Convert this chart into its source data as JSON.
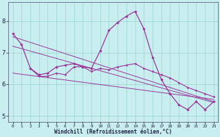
{
  "xlabel": "Windchill (Refroidissement éolien,°C)",
  "background_color": "#c8eef0",
  "grid_color": "#a0d8d0",
  "line_color": "#993399",
  "xlim": [
    -0.5,
    23.5
  ],
  "ylim": [
    4.8,
    8.6
  ],
  "x_ticks": [
    0,
    1,
    2,
    3,
    4,
    5,
    6,
    7,
    8,
    9,
    10,
    11,
    12,
    13,
    14,
    15,
    16,
    17,
    18,
    19,
    20,
    21,
    22,
    23
  ],
  "y_ticks": [
    5,
    6,
    7,
    8
  ],
  "series1_x": [
    0,
    1,
    2,
    3,
    4,
    5,
    6,
    7,
    8,
    9,
    10,
    11,
    12,
    13,
    14,
    15,
    16,
    17,
    18,
    19,
    20,
    21,
    22,
    23
  ],
  "series1_y": [
    7.6,
    7.25,
    6.5,
    6.3,
    6.35,
    6.55,
    6.6,
    6.65,
    6.55,
    6.5,
    7.05,
    7.7,
    7.95,
    8.15,
    8.3,
    7.75,
    6.85,
    6.15,
    5.7,
    5.35,
    5.2,
    5.45,
    5.2,
    5.45
  ],
  "series2_x": [
    2,
    3,
    4,
    5,
    6,
    7,
    8,
    9,
    10,
    11,
    12,
    13,
    14,
    15,
    16,
    17,
    18,
    19,
    20,
    21,
    22,
    23
  ],
  "series2_y": [
    6.5,
    6.25,
    6.25,
    6.35,
    6.3,
    6.55,
    6.55,
    6.4,
    6.5,
    6.45,
    6.55,
    6.6,
    6.65,
    6.5,
    6.4,
    6.3,
    6.2,
    6.05,
    5.9,
    5.8,
    5.7,
    5.6
  ],
  "trend1_x": [
    0,
    23
  ],
  "trend1_y": [
    7.5,
    5.45
  ],
  "trend2_x": [
    0,
    23
  ],
  "trend2_y": [
    7.2,
    5.42
  ],
  "trend3_x": [
    0,
    23
  ],
  "trend3_y": [
    6.35,
    5.52
  ]
}
